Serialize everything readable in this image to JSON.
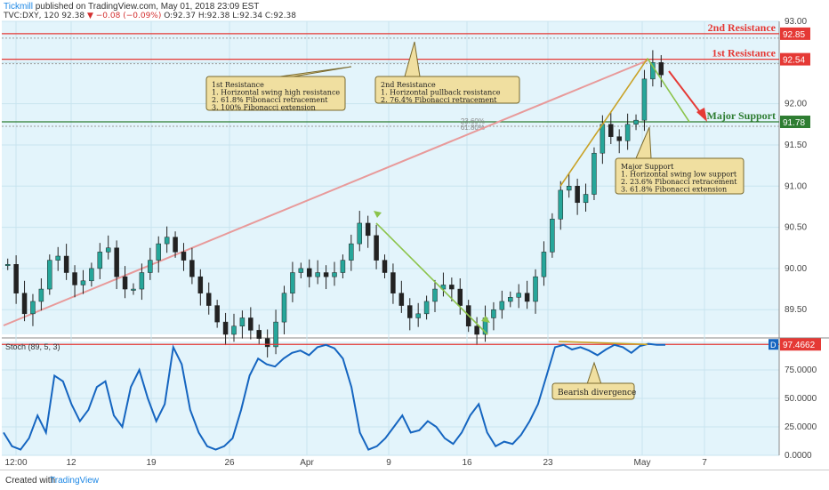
{
  "header": {
    "publisher": "Tickmill",
    "published_text": " published on TradingView.com, May 01, 2018 23:09 EST",
    "symbol_line": "TVC:DXY, 120  92.38",
    "change": "−0.08 (−0.09%)",
    "ohlc": "O:92.37  H:92.38  L:92.34  C:92.38"
  },
  "footer": {
    "created_with": "Created with",
    "brand": "TradingView"
  },
  "colors": {
    "resistance": "#e53935",
    "support": "#2e7d32",
    "callout_bg": "#f0dfa0",
    "stoch": "#1565c0",
    "panel_bg": "#e3f4fb"
  },
  "chart_data": [
    {
      "type": "candlestick",
      "price_axis": {
        "ylim": [
          89.2,
          93.0
        ],
        "ticks": [
          "93.00",
          "92.50",
          "92.00",
          "91.50",
          "91.00",
          "90.50",
          "90.00",
          "89.50"
        ]
      },
      "time_axis": {
        "ticks": [
          "12:00",
          "12",
          "19",
          "26",
          "Apr",
          "9",
          "16",
          "23",
          "May",
          "7"
        ]
      },
      "ohlc_series": [
        90.05,
        89.7,
        89.45,
        89.6,
        89.75,
        90.1,
        90.15,
        89.95,
        89.8,
        89.85,
        90.0,
        90.2,
        90.25,
        89.9,
        89.75,
        89.75,
        89.95,
        90.1,
        90.3,
        90.38,
        90.2,
        90.1,
        89.9,
        89.7,
        89.55,
        89.35,
        89.2,
        89.3,
        89.4,
        89.25,
        89.15,
        89.05,
        89.35,
        89.7,
        89.95,
        90.0,
        89.9,
        89.95,
        89.9,
        89.95,
        90.1,
        90.3,
        90.55,
        90.4,
        90.1,
        89.95,
        89.7,
        89.55,
        89.4,
        89.45,
        89.6,
        89.75,
        89.8,
        89.75,
        89.55,
        89.3,
        89.2,
        89.4,
        89.5,
        89.6,
        89.65,
        89.7,
        89.6,
        89.9,
        90.2,
        90.6,
        90.95,
        91.0,
        90.8,
        90.9,
        91.4,
        91.75,
        91.6,
        91.55,
        91.75,
        91.8,
        92.3,
        92.5,
        92.35
      ],
      "levels": [
        {
          "name": "2nd Resistance",
          "value": 92.85,
          "color": "#e53935"
        },
        {
          "name": "1st Resistance",
          "value": 92.54,
          "color": "#e53935"
        },
        {
          "name": "Major Support",
          "value": 91.78,
          "color": "#2e7d32"
        }
      ],
      "fib_labels": [
        "23.60%",
        "61.80%"
      ],
      "annotations": [
        {
          "lines": [
            "1st Resistance",
            "1. Horizontal swing high resistance",
            "2. 61.8% Fibonacci retracement",
            "3. 100% Fibonacci extension"
          ]
        },
        {
          "lines": [
            "2nd Resistance",
            "1. Horizontal pullback resistance",
            "2. 76.4% Fibonacci retracement"
          ]
        },
        {
          "lines": [
            "Major Support",
            "1. Horizontal swing low support",
            "2. 23.6% Fibonacci retracement",
            "3. 61.8% Fibonacci extension"
          ]
        }
      ]
    },
    {
      "type": "line",
      "title": "Stoch (89, 5, 3)",
      "ylim": [
        0,
        100
      ],
      "ticks": [
        "75.0000",
        "50.0000",
        "25.0000",
        "0.0000"
      ],
      "last_value": "97.4662",
      "series": [
        {
          "values": [
            20,
            8,
            5,
            15,
            35,
            20,
            70,
            65,
            45,
            30,
            40,
            60,
            65,
            35,
            25,
            60,
            75,
            50,
            30,
            45,
            95,
            80,
            40,
            20,
            8,
            5,
            8,
            15,
            40,
            70,
            85,
            80,
            78,
            85,
            90,
            92,
            88,
            95,
            97,
            94,
            85,
            60,
            20,
            5,
            8,
            15,
            25,
            35,
            20,
            22,
            30,
            25,
            15,
            10,
            20,
            35,
            45,
            20,
            8,
            12,
            10,
            18,
            30,
            45,
            70,
            95,
            97,
            93,
            95,
            92,
            88,
            93,
            97,
            95,
            90,
            96,
            98,
            97,
            97
          ]
        }
      ],
      "annotation": "Bearish divergence"
    }
  ]
}
